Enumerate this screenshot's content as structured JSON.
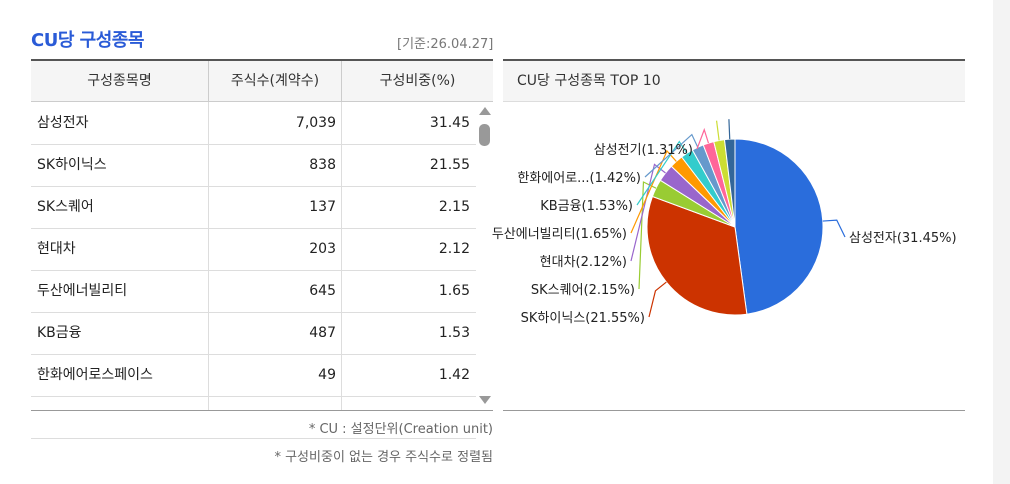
{
  "title": "CU당 구성종목",
  "basis_date": "[기준:26.04.27]",
  "table": {
    "headers": [
      "구성종목명",
      "주식수(계약수)",
      "구성비중(%)"
    ],
    "rows": [
      {
        "name": "삼성전자",
        "shares": "7,039",
        "weight": "31.45"
      },
      {
        "name": "SK하이닉스",
        "shares": "838",
        "weight": "21.55"
      },
      {
        "name": "SK스퀘어",
        "shares": "137",
        "weight": "2.15"
      },
      {
        "name": "현대차",
        "shares": "203",
        "weight": "2.12"
      },
      {
        "name": "두산에너빌리티",
        "shares": "645",
        "weight": "1.65"
      },
      {
        "name": "KB금융",
        "shares": "487",
        "weight": "1.53"
      },
      {
        "name": "한화에어로스페이스",
        "shares": "49",
        "weight": "1.42"
      },
      {
        "name": "",
        "shares": "",
        "weight": ""
      }
    ]
  },
  "notes": {
    "cu": "* CU : 설정단위(Creation unit)",
    "sort": "* 구성비중이 없는 경우 주식수로 정렬됨"
  },
  "chart_data": {
    "type": "pie",
    "title": "CU당 구성종목 TOP 10",
    "slices": [
      {
        "label": "삼성전자(31.45%)",
        "value": 31.45,
        "color": "#2a6ddc"
      },
      {
        "label": "SK하이닉스(21.55%)",
        "value": 21.55,
        "color": "#cc3300"
      },
      {
        "label": "SK스퀘어(2.15%)",
        "value": 2.15,
        "color": "#99cc33"
      },
      {
        "label": "현대차(2.12%)",
        "value": 2.12,
        "color": "#9966cc"
      },
      {
        "label": "두산에너빌리티(1.65%)",
        "value": 1.65,
        "color": "#ff9900"
      },
      {
        "label": "KB금융(1.53%)",
        "value": 1.53,
        "color": "#33cccc"
      },
      {
        "label": "한화에어로...(1.42%)",
        "value": 1.42,
        "color": "#6699cc"
      },
      {
        "label": "삼성전기(1.31%)",
        "value": 1.31,
        "color": "#ff6699"
      },
      {
        "label": "",
        "value": 1.3,
        "color": "#ccdd33"
      },
      {
        "label": "",
        "value": 1.25,
        "color": "#336699"
      }
    ]
  }
}
